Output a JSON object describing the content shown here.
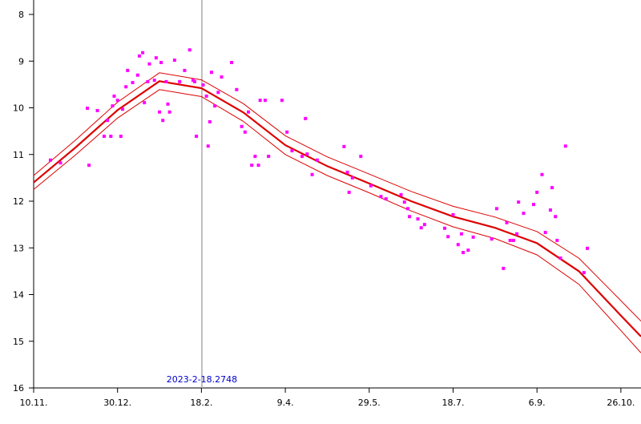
{
  "chart_data": {
    "type": "scatter",
    "xlim": [
      0,
      362
    ],
    "ylim": [
      16,
      8
    ],
    "xticks": [
      {
        "value": 0,
        "label": "10.11."
      },
      {
        "value": 50,
        "label": "30.12."
      },
      {
        "value": 100,
        "label": "18.2."
      },
      {
        "value": 150,
        "label": "9.4."
      },
      {
        "value": 200,
        "label": "29.5."
      },
      {
        "value": 250,
        "label": "18.7."
      },
      {
        "value": 300,
        "label": "6.9."
      },
      {
        "value": 350,
        "label": "26.10."
      }
    ],
    "yticks": [
      8,
      9,
      10,
      11,
      12,
      13,
      14,
      15,
      16
    ],
    "color": "#ff00ff",
    "x": [
      10,
      16,
      32,
      33,
      38,
      42,
      44,
      46,
      47,
      48,
      50,
      52,
      53,
      55,
      56,
      59,
      62,
      63,
      65,
      66,
      68,
      69,
      72,
      73,
      75,
      76,
      77,
      79,
      80,
      81,
      84,
      87,
      90,
      93,
      95,
      96,
      97,
      101,
      103,
      104,
      105,
      106,
      108,
      110,
      112,
      118,
      121,
      124,
      126,
      128,
      130,
      132,
      134,
      135,
      138,
      140,
      148,
      151,
      154,
      160,
      162,
      163,
      166,
      169,
      185,
      187,
      188,
      190,
      195,
      201,
      207,
      210,
      219,
      221,
      223,
      224,
      229,
      231,
      233,
      245,
      247,
      250,
      253,
      255,
      256,
      259,
      262,
      273,
      276,
      280,
      282,
      284,
      286,
      288,
      289,
      292,
      298,
      300,
      303,
      305,
      308,
      309,
      311,
      312,
      314,
      317,
      328,
      330
    ],
    "values": [
      11.12,
      11.18,
      10.01,
      11.23,
      10.06,
      10.61,
      10.27,
      10.61,
      9.96,
      9.75,
      9.84,
      10.61,
      10.03,
      9.55,
      9.2,
      9.46,
      9.3,
      8.89,
      8.82,
      9.89,
      9.44,
      9.06,
      9.41,
      8.93,
      10.09,
      9.03,
      10.27,
      9.44,
      9.92,
      10.09,
      8.98,
      9.44,
      9.2,
      8.76,
      9.41,
      9.44,
      10.61,
      9.51,
      9.75,
      10.82,
      10.3,
      9.24,
      9.96,
      9.67,
      9.34,
      9.03,
      9.61,
      10.4,
      10.52,
      10.09,
      11.23,
      11.04,
      11.23,
      9.84,
      9.84,
      11.04,
      9.84,
      10.52,
      10.92,
      11.04,
      10.23,
      10.99,
      11.43,
      11.12,
      10.83,
      11.38,
      11.81,
      11.5,
      11.04,
      11.67,
      11.9,
      11.95,
      11.86,
      12.02,
      12.16,
      12.33,
      12.38,
      12.57,
      12.5,
      12.58,
      12.76,
      12.29,
      12.93,
      12.7,
      13.1,
      13.05,
      12.77,
      12.81,
      12.16,
      13.44,
      12.46,
      12.84,
      12.84,
      12.7,
      12.02,
      12.26,
      12.07,
      11.81,
      11.43,
      12.67,
      12.19,
      11.71,
      12.33,
      12.84,
      13.22,
      10.82,
      13.53,
      13.01
    ],
    "line_x": [
      0,
      25,
      50,
      75,
      100,
      125,
      150,
      175,
      200,
      225,
      250,
      275,
      300,
      325,
      350,
      362
    ],
    "lines": [
      {
        "color": "#dd0000",
        "values": [
          11.6,
          10.85,
          10.05,
          9.43,
          9.58,
          10.1,
          10.8,
          11.25,
          11.62,
          12.0,
          12.33,
          12.57,
          12.9,
          13.5,
          14.45,
          14.9
        ]
      },
      {
        "color": "#dd0000",
        "values": [
          11.45,
          10.69,
          9.88,
          9.25,
          9.4,
          9.91,
          10.6,
          11.05,
          11.42,
          11.79,
          12.11,
          12.34,
          12.65,
          13.22,
          14.13,
          14.57
        ]
      },
      {
        "color": "#dd0000",
        "values": [
          11.75,
          11.01,
          10.22,
          9.61,
          9.76,
          10.29,
          11.0,
          11.45,
          11.82,
          12.21,
          12.55,
          12.8,
          13.15,
          13.78,
          14.77,
          15.25
        ]
      }
    ],
    "cursor": {
      "x": 100.27,
      "label": "2023-2-18.2748",
      "color": "#aaaaaa",
      "label_color": "#0000cc"
    }
  }
}
